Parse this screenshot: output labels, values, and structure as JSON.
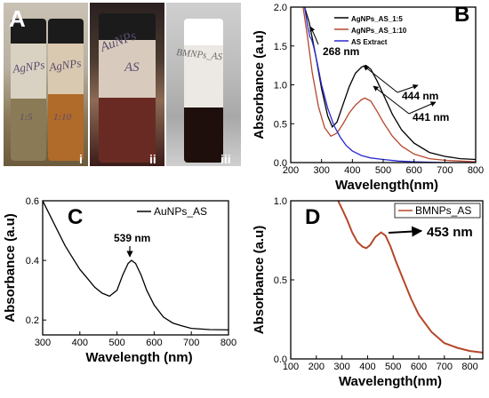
{
  "panels": {
    "A": {
      "letter": "A",
      "sub_labels": [
        "i",
        "ii",
        "iii"
      ],
      "vial_texts": [
        "AgNPs",
        "AgNPs",
        "1:5",
        "1:10",
        "AuNPs",
        "AS",
        "BMNPs_AS"
      ]
    },
    "B": {
      "letter": "B",
      "annotations": [
        "268 nm",
        "444 nm",
        "441 nm"
      ]
    },
    "C": {
      "letter": "C",
      "annotations": [
        "539 nm"
      ]
    },
    "D": {
      "letter": "D",
      "annotations": [
        "453 nm"
      ]
    }
  },
  "chart_data": [
    {
      "panel": "B",
      "type": "line",
      "xlabel": "Wavelength(nm)",
      "ylabel": "Absorbance (a.u)",
      "xlim": [
        200,
        800
      ],
      "ylim": [
        0,
        2.0
      ],
      "xticks": [
        200,
        300,
        400,
        500,
        600,
        700,
        800
      ],
      "yticks": [
        0.0,
        0.5,
        1.0,
        1.5,
        2.0
      ],
      "legend": "top-right",
      "series": [
        {
          "name": "AgNPs_AS_1:5",
          "color": "#000000",
          "x": [
            245,
            260,
            280,
            300,
            320,
            335,
            350,
            370,
            390,
            410,
            430,
            444,
            460,
            480,
            500,
            530,
            560,
            600,
            650,
            700,
            750,
            800
          ],
          "y": [
            2.0,
            1.8,
            1.4,
            0.95,
            0.6,
            0.46,
            0.52,
            0.75,
            0.98,
            1.15,
            1.23,
            1.25,
            1.2,
            1.05,
            0.88,
            0.62,
            0.42,
            0.25,
            0.13,
            0.08,
            0.05,
            0.04
          ]
        },
        {
          "name": "AgNPs_AS_1:10",
          "color": "#b5472a",
          "x": [
            240,
            255,
            270,
            290,
            310,
            330,
            350,
            370,
            390,
            410,
            430,
            441,
            460,
            480,
            500,
            530,
            560,
            600,
            650,
            700,
            750,
            800
          ],
          "y": [
            2.0,
            1.6,
            1.15,
            0.72,
            0.45,
            0.34,
            0.38,
            0.5,
            0.64,
            0.74,
            0.81,
            0.83,
            0.79,
            0.66,
            0.52,
            0.34,
            0.21,
            0.11,
            0.05,
            0.03,
            0.02,
            0.01
          ]
        },
        {
          "name": "AS Extract",
          "color": "#2a2ad0",
          "x": [
            245,
            255,
            262,
            268,
            275,
            285,
            300,
            320,
            340,
            360,
            380,
            400,
            430,
            460,
            500,
            550,
            600,
            700,
            800
          ],
          "y": [
            2.0,
            1.75,
            1.62,
            1.58,
            1.48,
            1.3,
            1.0,
            0.7,
            0.48,
            0.33,
            0.22,
            0.15,
            0.09,
            0.06,
            0.04,
            0.02,
            0.01,
            0.0,
            0.0
          ]
        }
      ]
    },
    {
      "panel": "C",
      "type": "line",
      "xlabel": "Wavelength (nm)",
      "ylabel": "Absorbance (a.u)",
      "xlim": [
        300,
        800
      ],
      "ylim": [
        0.15,
        0.6
      ],
      "xticks": [
        300,
        400,
        500,
        600,
        700,
        800
      ],
      "yticks": [
        0.2,
        0.4,
        0.6
      ],
      "legend": "top-right",
      "series": [
        {
          "name": "AuNPs_AS",
          "color": "#000000",
          "x": [
            300,
            320,
            340,
            360,
            380,
            400,
            420,
            440,
            460,
            480,
            500,
            515,
            530,
            539,
            550,
            565,
            580,
            600,
            625,
            650,
            675,
            700,
            750,
            800
          ],
          "y": [
            0.6,
            0.55,
            0.5,
            0.45,
            0.41,
            0.37,
            0.34,
            0.31,
            0.29,
            0.28,
            0.3,
            0.35,
            0.39,
            0.4,
            0.39,
            0.35,
            0.3,
            0.25,
            0.21,
            0.19,
            0.18,
            0.172,
            0.168,
            0.167
          ]
        }
      ]
    },
    {
      "panel": "D",
      "type": "line",
      "xlabel": "Wavelength(nm)",
      "ylabel": "Absorbance (a.u)",
      "xlim": [
        100,
        850
      ],
      "ylim": [
        0.0,
        1.0
      ],
      "xticks": [
        100,
        200,
        300,
        400,
        500,
        600,
        700,
        800
      ],
      "yticks": [
        0.0,
        0.5,
        1.0
      ],
      "legend": "top-right",
      "series": [
        {
          "name": "BMNPs_AS",
          "color": "#b5472a",
          "x": [
            285,
            300,
            320,
            340,
            360,
            380,
            395,
            410,
            430,
            453,
            470,
            490,
            510,
            540,
            570,
            600,
            650,
            700,
            750,
            800,
            850
          ],
          "y": [
            1.0,
            0.95,
            0.88,
            0.8,
            0.74,
            0.71,
            0.7,
            0.72,
            0.77,
            0.8,
            0.78,
            0.71,
            0.62,
            0.5,
            0.38,
            0.28,
            0.17,
            0.1,
            0.07,
            0.05,
            0.04
          ]
        }
      ]
    }
  ]
}
